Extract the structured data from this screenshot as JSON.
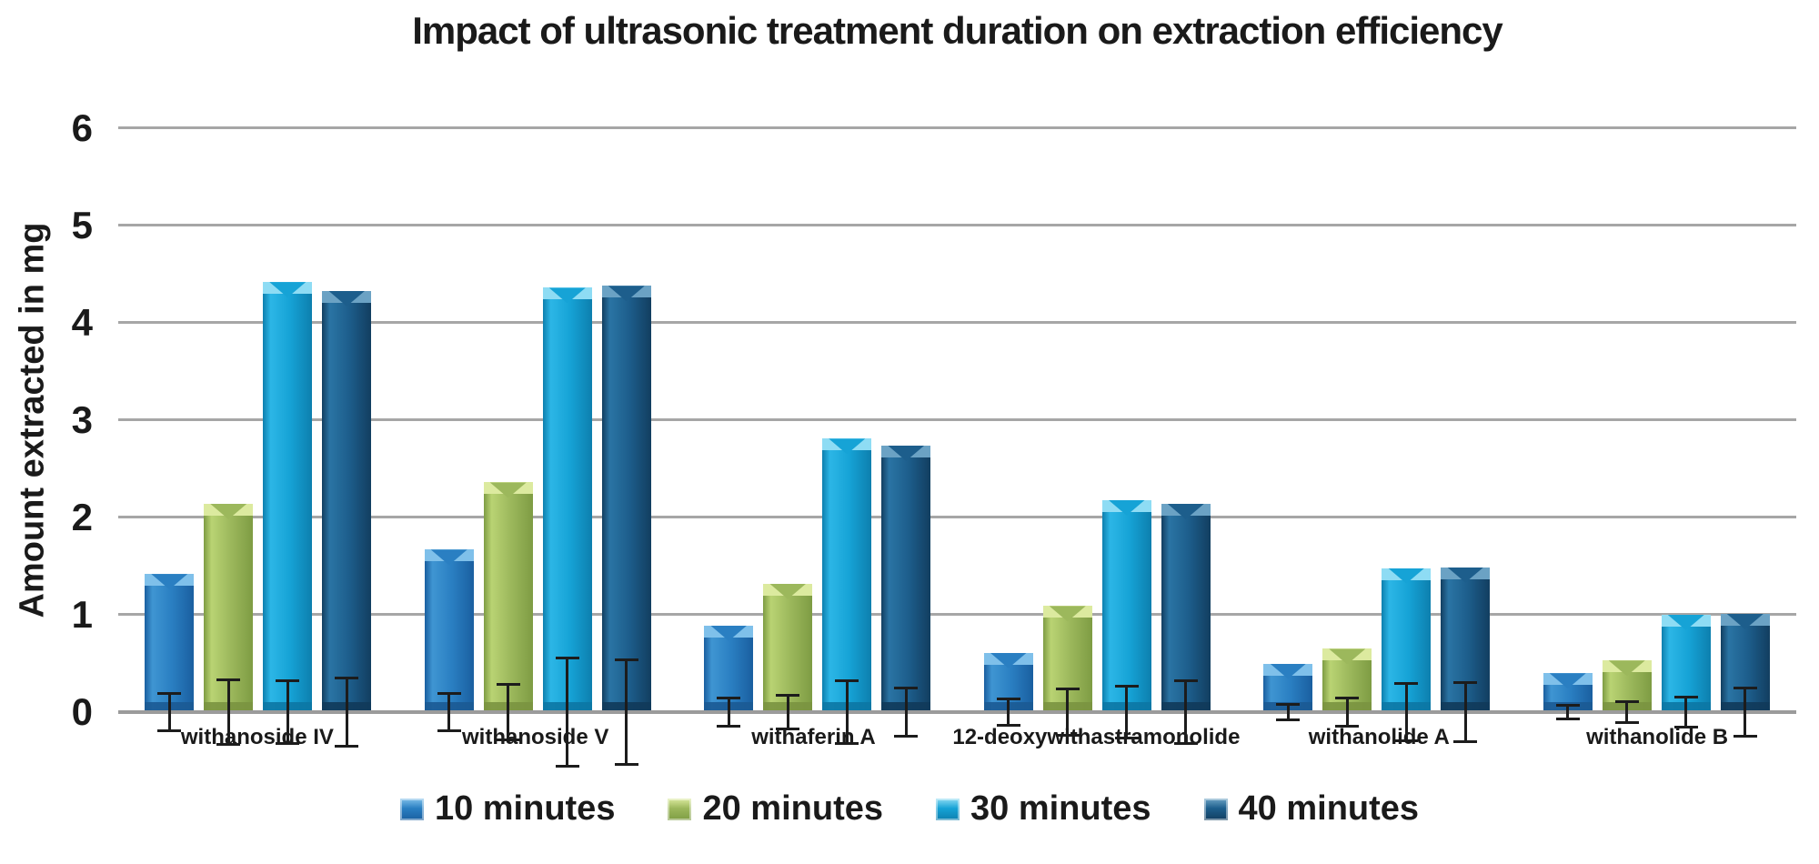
{
  "page": {
    "background": "#ffffff"
  },
  "chart_data": {
    "type": "bar",
    "title": "Impact of ultrasonic treatment duration on extraction efficiency",
    "ylabel": "Amount extracted in mg",
    "xlabel": "",
    "ylim": [
      0,
      6
    ],
    "yticks": [
      0,
      1,
      2,
      3,
      4,
      5,
      6
    ],
    "grid": true,
    "legend_position": "bottom-center",
    "error_bars": true,
    "categories": [
      "withanoside IV",
      "withanoside V",
      "withaferin A",
      "12-deoxywithastramonolide",
      "withanolide A",
      "withanolide B"
    ],
    "series": [
      {
        "name": "10 minutes",
        "color": "#2a7fc2",
        "colors": {
          "edge": "#1a5fa0",
          "mid": "#2a7fc2",
          "light": "#3f95d2",
          "bevel": "#7fc0ea",
          "shadow": "#1b5a94"
        },
        "values": [
          1.42,
          1.67,
          0.89,
          0.61,
          0.5,
          0.4
        ],
        "errors": [
          0.18,
          0.18,
          0.13,
          0.12,
          0.07,
          0.06
        ]
      },
      {
        "name": "20 minutes",
        "color": "#9cb85c",
        "colors": {
          "edge": "#7e9c43",
          "mid": "#9cb85c",
          "light": "#b9d373",
          "bevel": "#dcea9f",
          "shadow": "#7a9440"
        },
        "values": [
          2.14,
          2.36,
          1.32,
          1.09,
          0.65,
          0.53
        ],
        "errors": [
          0.32,
          0.27,
          0.16,
          0.22,
          0.13,
          0.09
        ]
      },
      {
        "name": "30 minutes",
        "color": "#16a3d6",
        "colors": {
          "edge": "#0d7fae",
          "mid": "#16a3d6",
          "light": "#2cb6e6",
          "bevel": "#8edcf4",
          "shadow": "#0c77a4"
        },
        "values": [
          4.42,
          4.36,
          2.81,
          2.18,
          1.48,
          1.0
        ],
        "errors": [
          0.31,
          0.54,
          0.31,
          0.25,
          0.28,
          0.14
        ]
      },
      {
        "name": "40 minutes",
        "color": "#1d5e8c",
        "colors": {
          "edge": "#123e60",
          "mid": "#1d5e8c",
          "light": "#2a74a4",
          "bevel": "#6ba2c4",
          "shadow": "#113a5a"
        },
        "values": [
          4.33,
          4.38,
          2.74,
          2.14,
          1.49,
          1.01
        ],
        "errors": [
          0.34,
          0.52,
          0.23,
          0.31,
          0.29,
          0.23
        ]
      }
    ],
    "styles": {
      "gridline_color": "#a6a6a6",
      "baseline_color": "#9b9b9b",
      "error_bar_color": "#1c1c1c",
      "text_color": "#1a1a1a"
    }
  }
}
